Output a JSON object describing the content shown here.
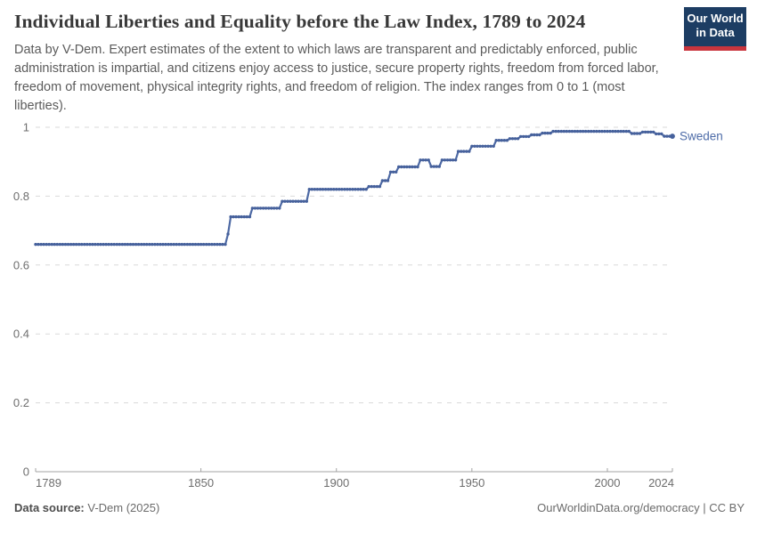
{
  "header": {
    "title": "Individual Liberties and Equality before the Law Index, 1789 to 2024",
    "subtitle": "Data by V-Dem. Expert estimates of the extent to which laws are transparent and predictably enforced, public administration is impartial, and citizens enjoy access to justice, secure property rights, freedom from forced labor, freedom of movement, physical integrity rights, and freedom of religion. The index ranges from 0 to 1 (most liberties)."
  },
  "logo": {
    "line1": "Our World",
    "line2": "in Data",
    "bg_color": "#1d3d63",
    "bar_color": "#c9353d"
  },
  "chart_data": {
    "type": "line",
    "title": "Individual Liberties and Equality before the Law Index",
    "entity": "Sweden",
    "xlabel": "",
    "ylabel": "",
    "xlim": [
      1789,
      2024
    ],
    "ylim": [
      0,
      1
    ],
    "x_ticks": [
      1789,
      1850,
      1900,
      1950,
      2000,
      2024
    ],
    "y_ticks": [
      0,
      0.2,
      0.4,
      0.6,
      0.8,
      1
    ],
    "grid": "horizontal-dashed",
    "legend_position": "line-end-label",
    "series": [
      {
        "name": "Sweden",
        "color": "#4d69a4",
        "marker_color": "#46619c",
        "label_color": "#4e6ca8",
        "step_points": [
          [
            1789,
            0.66
          ],
          [
            1860,
            0.69
          ],
          [
            1861,
            0.74
          ],
          [
            1869,
            0.765
          ],
          [
            1880,
            0.785
          ],
          [
            1890,
            0.82
          ],
          [
            1912,
            0.828
          ],
          [
            1917,
            0.845
          ],
          [
            1920,
            0.87
          ],
          [
            1923,
            0.885
          ],
          [
            1931,
            0.905
          ],
          [
            1935,
            0.886
          ],
          [
            1939,
            0.905
          ],
          [
            1945,
            0.93
          ],
          [
            1950,
            0.945
          ],
          [
            1959,
            0.962
          ],
          [
            1964,
            0.967
          ],
          [
            1968,
            0.973
          ],
          [
            1972,
            0.978
          ],
          [
            1976,
            0.983
          ],
          [
            1980,
            0.988
          ],
          [
            2009,
            0.982
          ],
          [
            2013,
            0.986
          ],
          [
            2018,
            0.981
          ],
          [
            2021,
            0.974
          ]
        ],
        "end_year": 2024,
        "end_value": 0.974
      }
    ],
    "axis_colors": {
      "grid": "#d9d9d9",
      "axis": "#a3a3a3",
      "tick_label": "#6e6e6e"
    }
  },
  "footer": {
    "source_label": "Data source:",
    "source_value": "V-Dem (2025)",
    "credit": "OurWorldinData.org/democracy | CC BY"
  }
}
